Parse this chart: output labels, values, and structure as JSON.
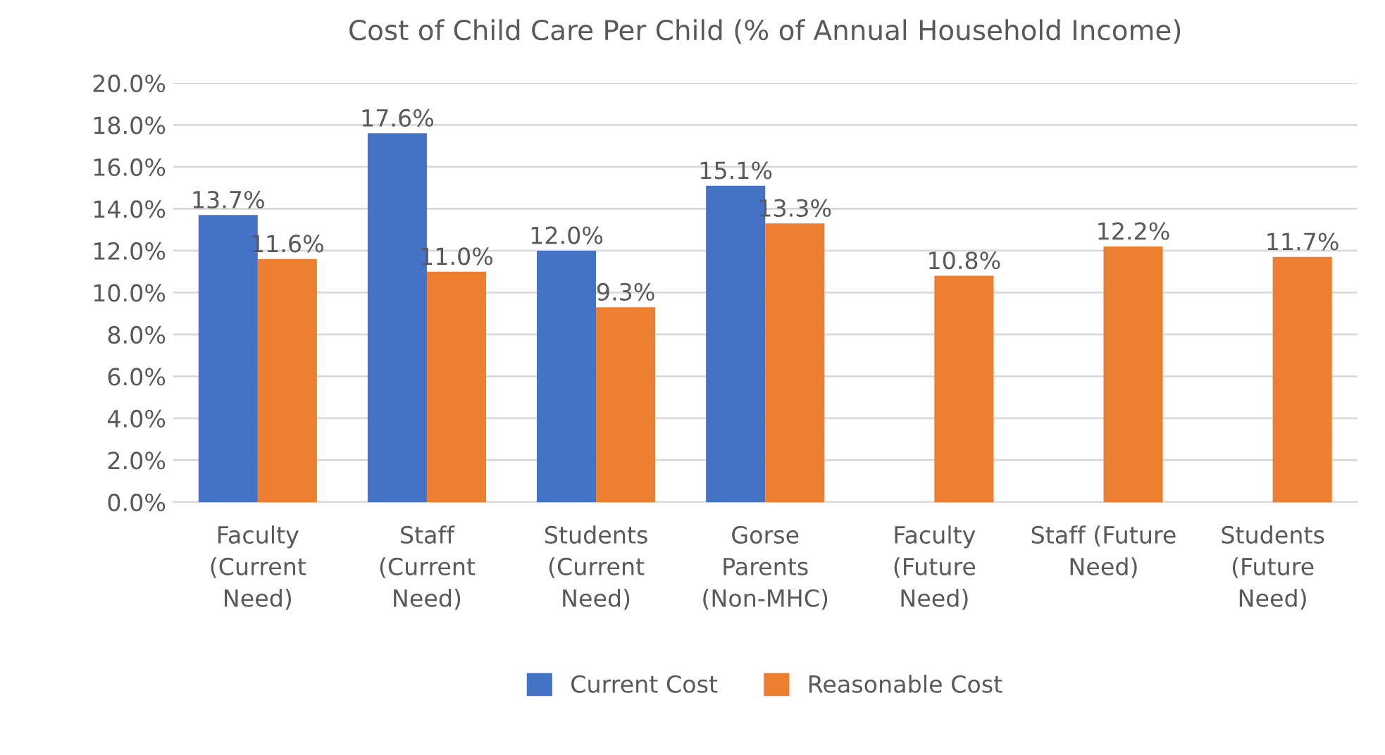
{
  "chart_data": {
    "type": "bar",
    "title": "Cost of Child Care Per Child (% of Annual Household Income)",
    "categories": [
      "Faculty\n(Current\nNeed)",
      "Staff\n(Current\nNeed)",
      "Students\n(Current\nNeed)",
      "Gorse\nParents\n(Non-MHC)",
      "Faculty\n(Future\nNeed)",
      "Staff (Future\nNeed)",
      "Students\n(Future\nNeed)"
    ],
    "series": [
      {
        "name": "Current Cost",
        "color": "#4472c4",
        "values": [
          13.7,
          17.6,
          12.0,
          15.1,
          null,
          null,
          null
        ],
        "value_labels": [
          "13.7%",
          "17.6%",
          "12.0%",
          "15.1%",
          null,
          null,
          null
        ]
      },
      {
        "name": "Reasonable Cost",
        "color": "#ed7d31",
        "values": [
          11.6,
          11.0,
          9.3,
          13.3,
          10.8,
          12.2,
          11.7
        ],
        "value_labels": [
          "11.6%",
          "11.0%",
          "9.3%",
          "13.3%",
          "10.8%",
          "12.2%",
          "11.7%"
        ]
      }
    ],
    "ylim": [
      0,
      20
    ],
    "yticks": [
      {
        "value": 0,
        "label": "0.0%"
      },
      {
        "value": 2,
        "label": "2.0%"
      },
      {
        "value": 4,
        "label": "4.0%"
      },
      {
        "value": 6,
        "label": "6.0%"
      },
      {
        "value": 8,
        "label": "8.0%"
      },
      {
        "value": 10,
        "label": "10.0%"
      },
      {
        "value": 12,
        "label": "12.0%"
      },
      {
        "value": 14,
        "label": "14.0%"
      },
      {
        "value": 16,
        "label": "16.0%"
      },
      {
        "value": 18,
        "label": "18.0%"
      },
      {
        "value": 20,
        "label": "20.0%"
      }
    ],
    "grid": "y",
    "legend": "bottom"
  }
}
